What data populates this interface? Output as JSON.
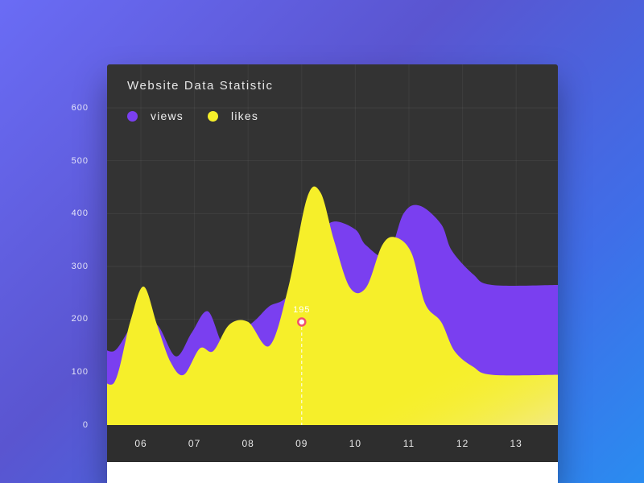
{
  "chart_data": {
    "type": "area",
    "title": "Website Data Statistic",
    "xlabel": "",
    "ylabel": "",
    "categories": [
      "06",
      "07",
      "08",
      "09",
      "10",
      "11",
      "12",
      "13"
    ],
    "y_ticks": [
      "600",
      "500",
      "400",
      "300",
      "200",
      "100",
      "0"
    ],
    "ylim": [
      0,
      600
    ],
    "grid": true,
    "legend_position": "top-left",
    "series": [
      {
        "name": "views",
        "color": "#7a3ff0",
        "points": [
          [
            5.15,
            160
          ],
          [
            5.5,
            140
          ],
          [
            5.9,
            195
          ],
          [
            6.3,
            190
          ],
          [
            6.65,
            130
          ],
          [
            6.95,
            175
          ],
          [
            7.25,
            215
          ],
          [
            7.55,
            150
          ],
          [
            7.85,
            175
          ],
          [
            8.15,
            200
          ],
          [
            8.4,
            225
          ],
          [
            8.7,
            240
          ],
          [
            9.05,
            290
          ],
          [
            9.35,
            360
          ],
          [
            9.6,
            385
          ],
          [
            10.0,
            370
          ],
          [
            10.2,
            340
          ],
          [
            10.6,
            320
          ],
          [
            10.9,
            400
          ],
          [
            11.2,
            415
          ],
          [
            11.6,
            380
          ],
          [
            11.8,
            330
          ],
          [
            12.2,
            285
          ],
          [
            12.55,
            265
          ]
        ]
      },
      {
        "name": "likes",
        "color": "#f6ef2a",
        "points": [
          [
            5.15,
            105
          ],
          [
            5.5,
            80
          ],
          [
            5.8,
            195
          ],
          [
            6.05,
            262
          ],
          [
            6.3,
            190
          ],
          [
            6.55,
            120
          ],
          [
            6.8,
            95
          ],
          [
            7.1,
            145
          ],
          [
            7.35,
            140
          ],
          [
            7.65,
            190
          ],
          [
            8.0,
            195
          ],
          [
            8.4,
            150
          ],
          [
            8.75,
            260
          ],
          [
            9.1,
            430
          ],
          [
            9.35,
            440
          ],
          [
            9.6,
            350
          ],
          [
            9.9,
            260
          ],
          [
            10.2,
            260
          ],
          [
            10.5,
            340
          ],
          [
            10.75,
            355
          ],
          [
            11.05,
            325
          ],
          [
            11.3,
            230
          ],
          [
            11.6,
            195
          ],
          [
            11.85,
            140
          ],
          [
            12.2,
            110
          ],
          [
            12.55,
            95
          ]
        ]
      }
    ],
    "highlight": {
      "category": "09",
      "value": 195,
      "label": "195"
    }
  }
}
